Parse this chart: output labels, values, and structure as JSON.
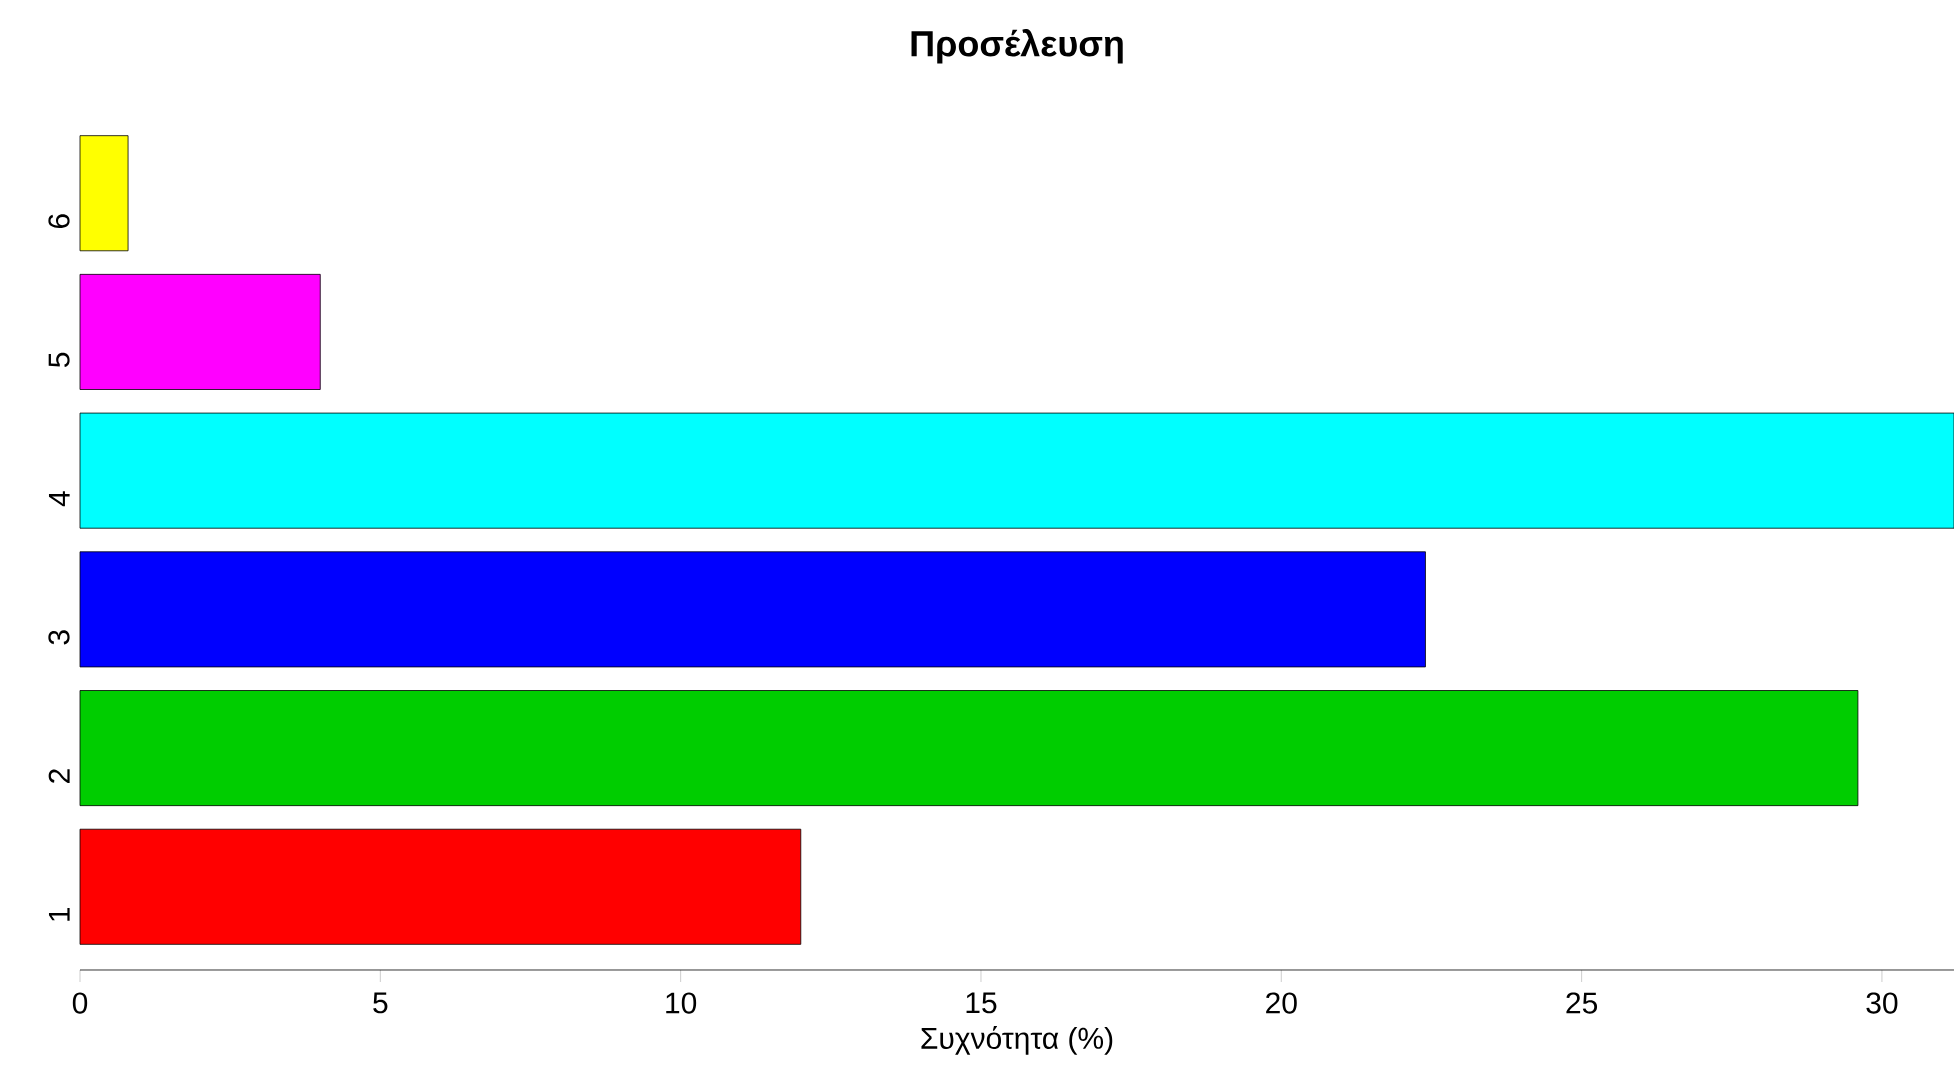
{
  "chart_data": {
    "type": "bar",
    "orientation": "horizontal",
    "title": "Προσέλευση",
    "xlabel": "Συχνότητα (%)",
    "categories": [
      "6",
      "5",
      "4",
      "3",
      "2",
      "1"
    ],
    "values": [
      0.8,
      4,
      31.2,
      22.4,
      29.6,
      12
    ],
    "colors": [
      "#ffff00",
      "#ff00ff",
      "#00ffff",
      "#0000ff",
      "#00cd00",
      "#ff0000"
    ],
    "xlim": [
      0,
      31.2
    ],
    "xticks": [
      0,
      5,
      10,
      15,
      20,
      25,
      30
    ],
    "grid": false
  }
}
